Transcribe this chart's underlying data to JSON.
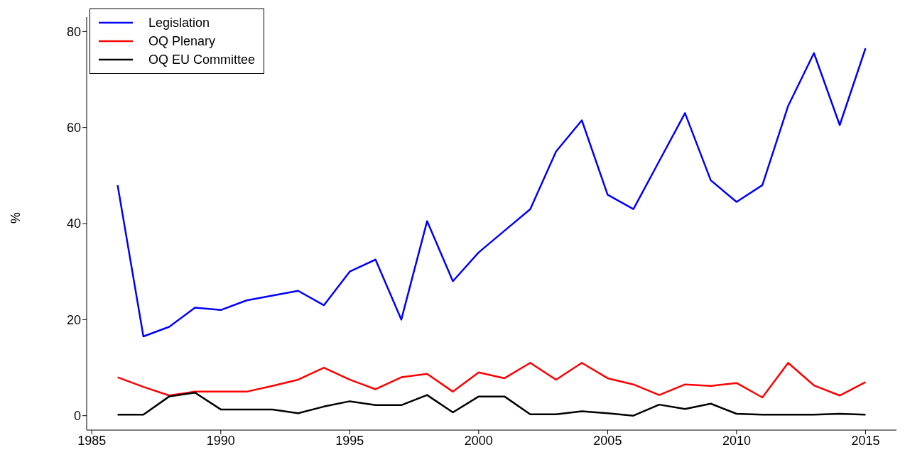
{
  "chart_data": {
    "type": "line",
    "ylabel": "%",
    "x": [
      1986,
      1987,
      1988,
      1989,
      1990,
      1991,
      1992,
      1993,
      1994,
      1995,
      1996,
      1997,
      1998,
      1999,
      2000,
      2001,
      2002,
      2003,
      2004,
      2005,
      2006,
      2007,
      2008,
      2009,
      2010,
      2011,
      2012,
      2013,
      2014,
      2015
    ],
    "series": [
      {
        "name": "Legislation",
        "color": "#0000ff",
        "values": [
          48,
          16.5,
          18.5,
          22.5,
          22,
          24,
          25,
          26,
          23,
          30,
          32.5,
          20,
          40.5,
          28,
          34,
          38.5,
          43,
          55,
          61.5,
          46,
          43,
          53,
          63,
          49,
          44.5,
          48,
          64.5,
          75.5,
          60.5,
          76.5
        ]
      },
      {
        "name": "OQ Plenary",
        "color": "#ff0000",
        "values": [
          8,
          6,
          4.2,
          5,
          5,
          5,
          6.2,
          7.5,
          10,
          7.5,
          5.5,
          8,
          8.7,
          5,
          9,
          7.8,
          11,
          7.5,
          11,
          7.8,
          6.5,
          4.3,
          6.5,
          6.2,
          6.8,
          3.8,
          11,
          6.3,
          4.2,
          7
        ]
      },
      {
        "name": "OQ EU Committee",
        "color": "#000000",
        "values": [
          0.2,
          0.2,
          4,
          4.8,
          1.3,
          1.3,
          1.3,
          0.5,
          1.9,
          3,
          2.2,
          2.2,
          4.3,
          0.7,
          4,
          4,
          0.3,
          0.3,
          0.9,
          0.5,
          0,
          2.3,
          1.4,
          2.5,
          0.4,
          0.2,
          0.2,
          0.2,
          0.4,
          0.2
        ]
      }
    ],
    "xlim": [
      1984.8,
      2016.2
    ],
    "xticks": [
      1985,
      1990,
      1995,
      2000,
      2005,
      2010,
      2015
    ],
    "ylim": [
      -3,
      83
    ],
    "yticks": [
      0,
      20,
      40,
      60,
      80
    ],
    "grid": false,
    "legend": "top left",
    "marker": "none",
    "line_style": "solid"
  }
}
